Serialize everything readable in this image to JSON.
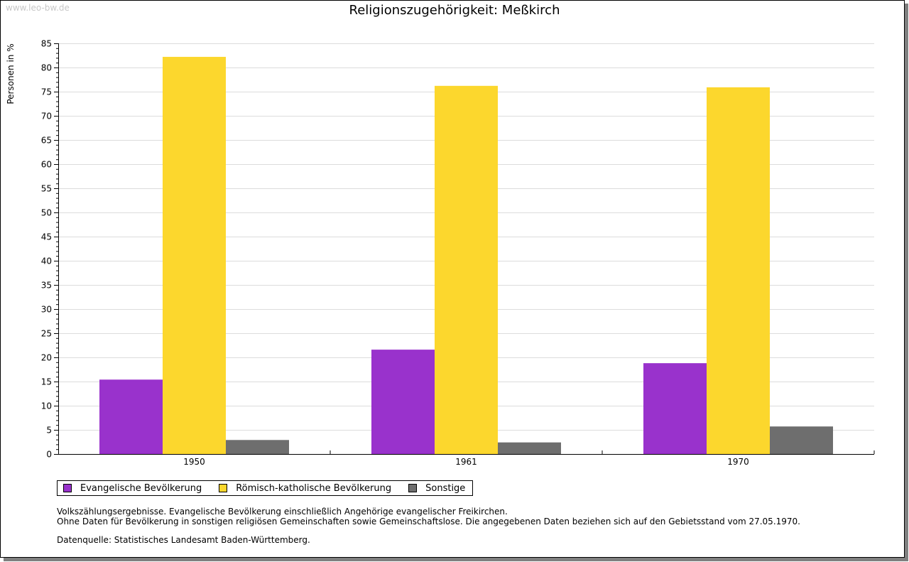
{
  "watermark": "www.leo-bw.de",
  "chart_data": {
    "type": "bar",
    "title": "Religionszugehörigkeit: Meßkirch",
    "xlabel": "",
    "ylabel": "Personen in %",
    "ylim": [
      0,
      85
    ],
    "yticks": [
      0,
      5,
      10,
      15,
      20,
      25,
      30,
      35,
      40,
      45,
      50,
      55,
      60,
      65,
      70,
      75,
      80,
      85
    ],
    "grid": true,
    "categories": [
      "1950",
      "1961",
      "1970"
    ],
    "series": [
      {
        "name": "Evangelische Bevölkerung",
        "color": "#9932cc",
        "values": [
          15.4,
          21.6,
          18.8
        ]
      },
      {
        "name": "Römisch-katholische Bevölkerung",
        "color": "#fcd72d",
        "values": [
          82.2,
          76.2,
          75.9
        ]
      },
      {
        "name": "Sonstige",
        "color": "#6e6e6e",
        "values": [
          2.9,
          2.4,
          5.7
        ]
      }
    ],
    "legend": "bottom-left"
  },
  "notes": [
    "Volkszählungsergebnisse. Evangelische Bevölkerung einschließlich Angehörige evangelischer Freikirchen.",
    "Ohne Daten für Bevölkerung in sonstigen religiösen Gemeinschaften sowie Gemeinschaftslose. Die angegebenen Daten beziehen sich auf den Gebietsstand vom 27.05.1970."
  ],
  "source": "Datenquelle: Statistisches Landesamt Baden-Württemberg."
}
